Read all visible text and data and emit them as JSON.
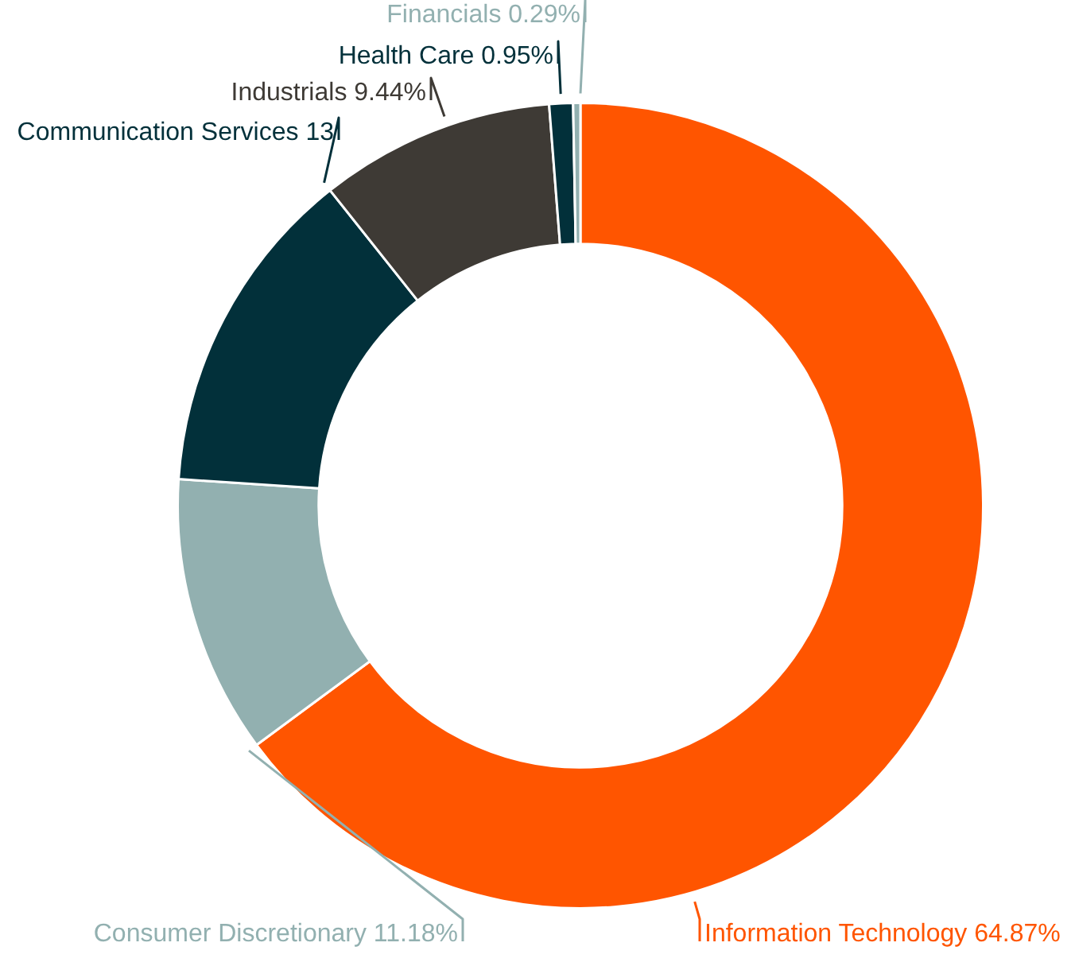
{
  "chart_data": {
    "type": "donut",
    "categories": [
      "Information Technology",
      "Consumer Discretionary",
      "Communication Services",
      "Industrials",
      "Health Care",
      "Financials"
    ],
    "values": [
      64.87,
      11.18,
      13.27,
      9.44,
      0.95,
      0.29
    ],
    "value_labels": [
      "64.87%",
      "11.18%",
      "13",
      "9.44%",
      "0.95%",
      "0.29%"
    ],
    "colors": [
      "#ff5500",
      "#92b0b0",
      "#02303a",
      "#3e3a35",
      "#02303a",
      "#92b0b0"
    ],
    "legend": false
  }
}
